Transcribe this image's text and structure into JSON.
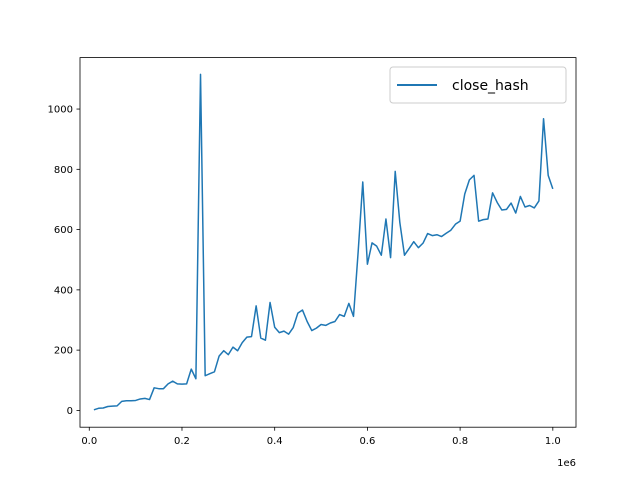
{
  "chart_data": {
    "type": "line",
    "title": "",
    "xlabel": "",
    "ylabel": "",
    "x_offset_label": "1e6",
    "xlim": [
      -20000,
      1050000
    ],
    "ylim": [
      -55.75,
      1170.75
    ],
    "xticks": [
      0,
      200000,
      400000,
      600000,
      800000,
      1000000
    ],
    "xtick_labels": [
      "0.0",
      "0.2",
      "0.4",
      "0.6",
      "0.8",
      "1.0"
    ],
    "yticks": [
      0,
      200,
      400,
      600,
      800,
      1000
    ],
    "ytick_labels": [
      "0",
      "200",
      "400",
      "600",
      "800",
      "1000"
    ],
    "grid": false,
    "legend_position": "top-right",
    "series": [
      {
        "name": "close_hash",
        "color": "#1f77b4",
        "x": [
          10000,
          20000,
          30000,
          40000,
          50000,
          60000,
          70000,
          80000,
          90000,
          100000,
          110000,
          120000,
          130000,
          140000,
          150000,
          160000,
          170000,
          180000,
          190000,
          200000,
          210000,
          220000,
          230000,
          240000,
          250000,
          260000,
          270000,
          280000,
          290000,
          300000,
          310000,
          320000,
          330000,
          340000,
          350000,
          360000,
          370000,
          380000,
          390000,
          400000,
          410000,
          420000,
          430000,
          440000,
          450000,
          460000,
          470000,
          480000,
          490000,
          500000,
          510000,
          520000,
          530000,
          540000,
          550000,
          560000,
          570000,
          580000,
          590000,
          600000,
          610000,
          620000,
          630000,
          640000,
          650000,
          660000,
          670000,
          680000,
          690000,
          700000,
          710000,
          720000,
          730000,
          740000,
          750000,
          760000,
          770000,
          780000,
          790000,
          800000,
          810000,
          820000,
          830000,
          840000,
          850000,
          860000,
          870000,
          880000,
          890000,
          900000,
          910000,
          920000,
          930000,
          940000,
          950000,
          960000,
          970000,
          980000,
          990000,
          1000000
        ],
        "y": [
          2,
          7,
          8,
          13,
          14,
          15,
          30,
          32,
          32,
          33,
          38,
          40,
          36,
          75,
          72,
          72,
          88,
          97,
          88,
          87,
          88,
          137,
          105,
          1115,
          115,
          122,
          128,
          180,
          198,
          185,
          210,
          198,
          225,
          243,
          245,
          347,
          240,
          233,
          358,
          276,
          258,
          263,
          253,
          275,
          323,
          333,
          295,
          265,
          273,
          285,
          282,
          290,
          295,
          318,
          312,
          355,
          312,
          525,
          758,
          485,
          556,
          545,
          515,
          635,
          507,
          793,
          623,
          515,
          537,
          560,
          540,
          555,
          587,
          580,
          583,
          577,
          588,
          598,
          618,
          628,
          718,
          765,
          780,
          628,
          633,
          635,
          722,
          690,
          665,
          667,
          688,
          655,
          710,
          675,
          680,
          672,
          695,
          968,
          780,
          735
        ]
      }
    ]
  }
}
